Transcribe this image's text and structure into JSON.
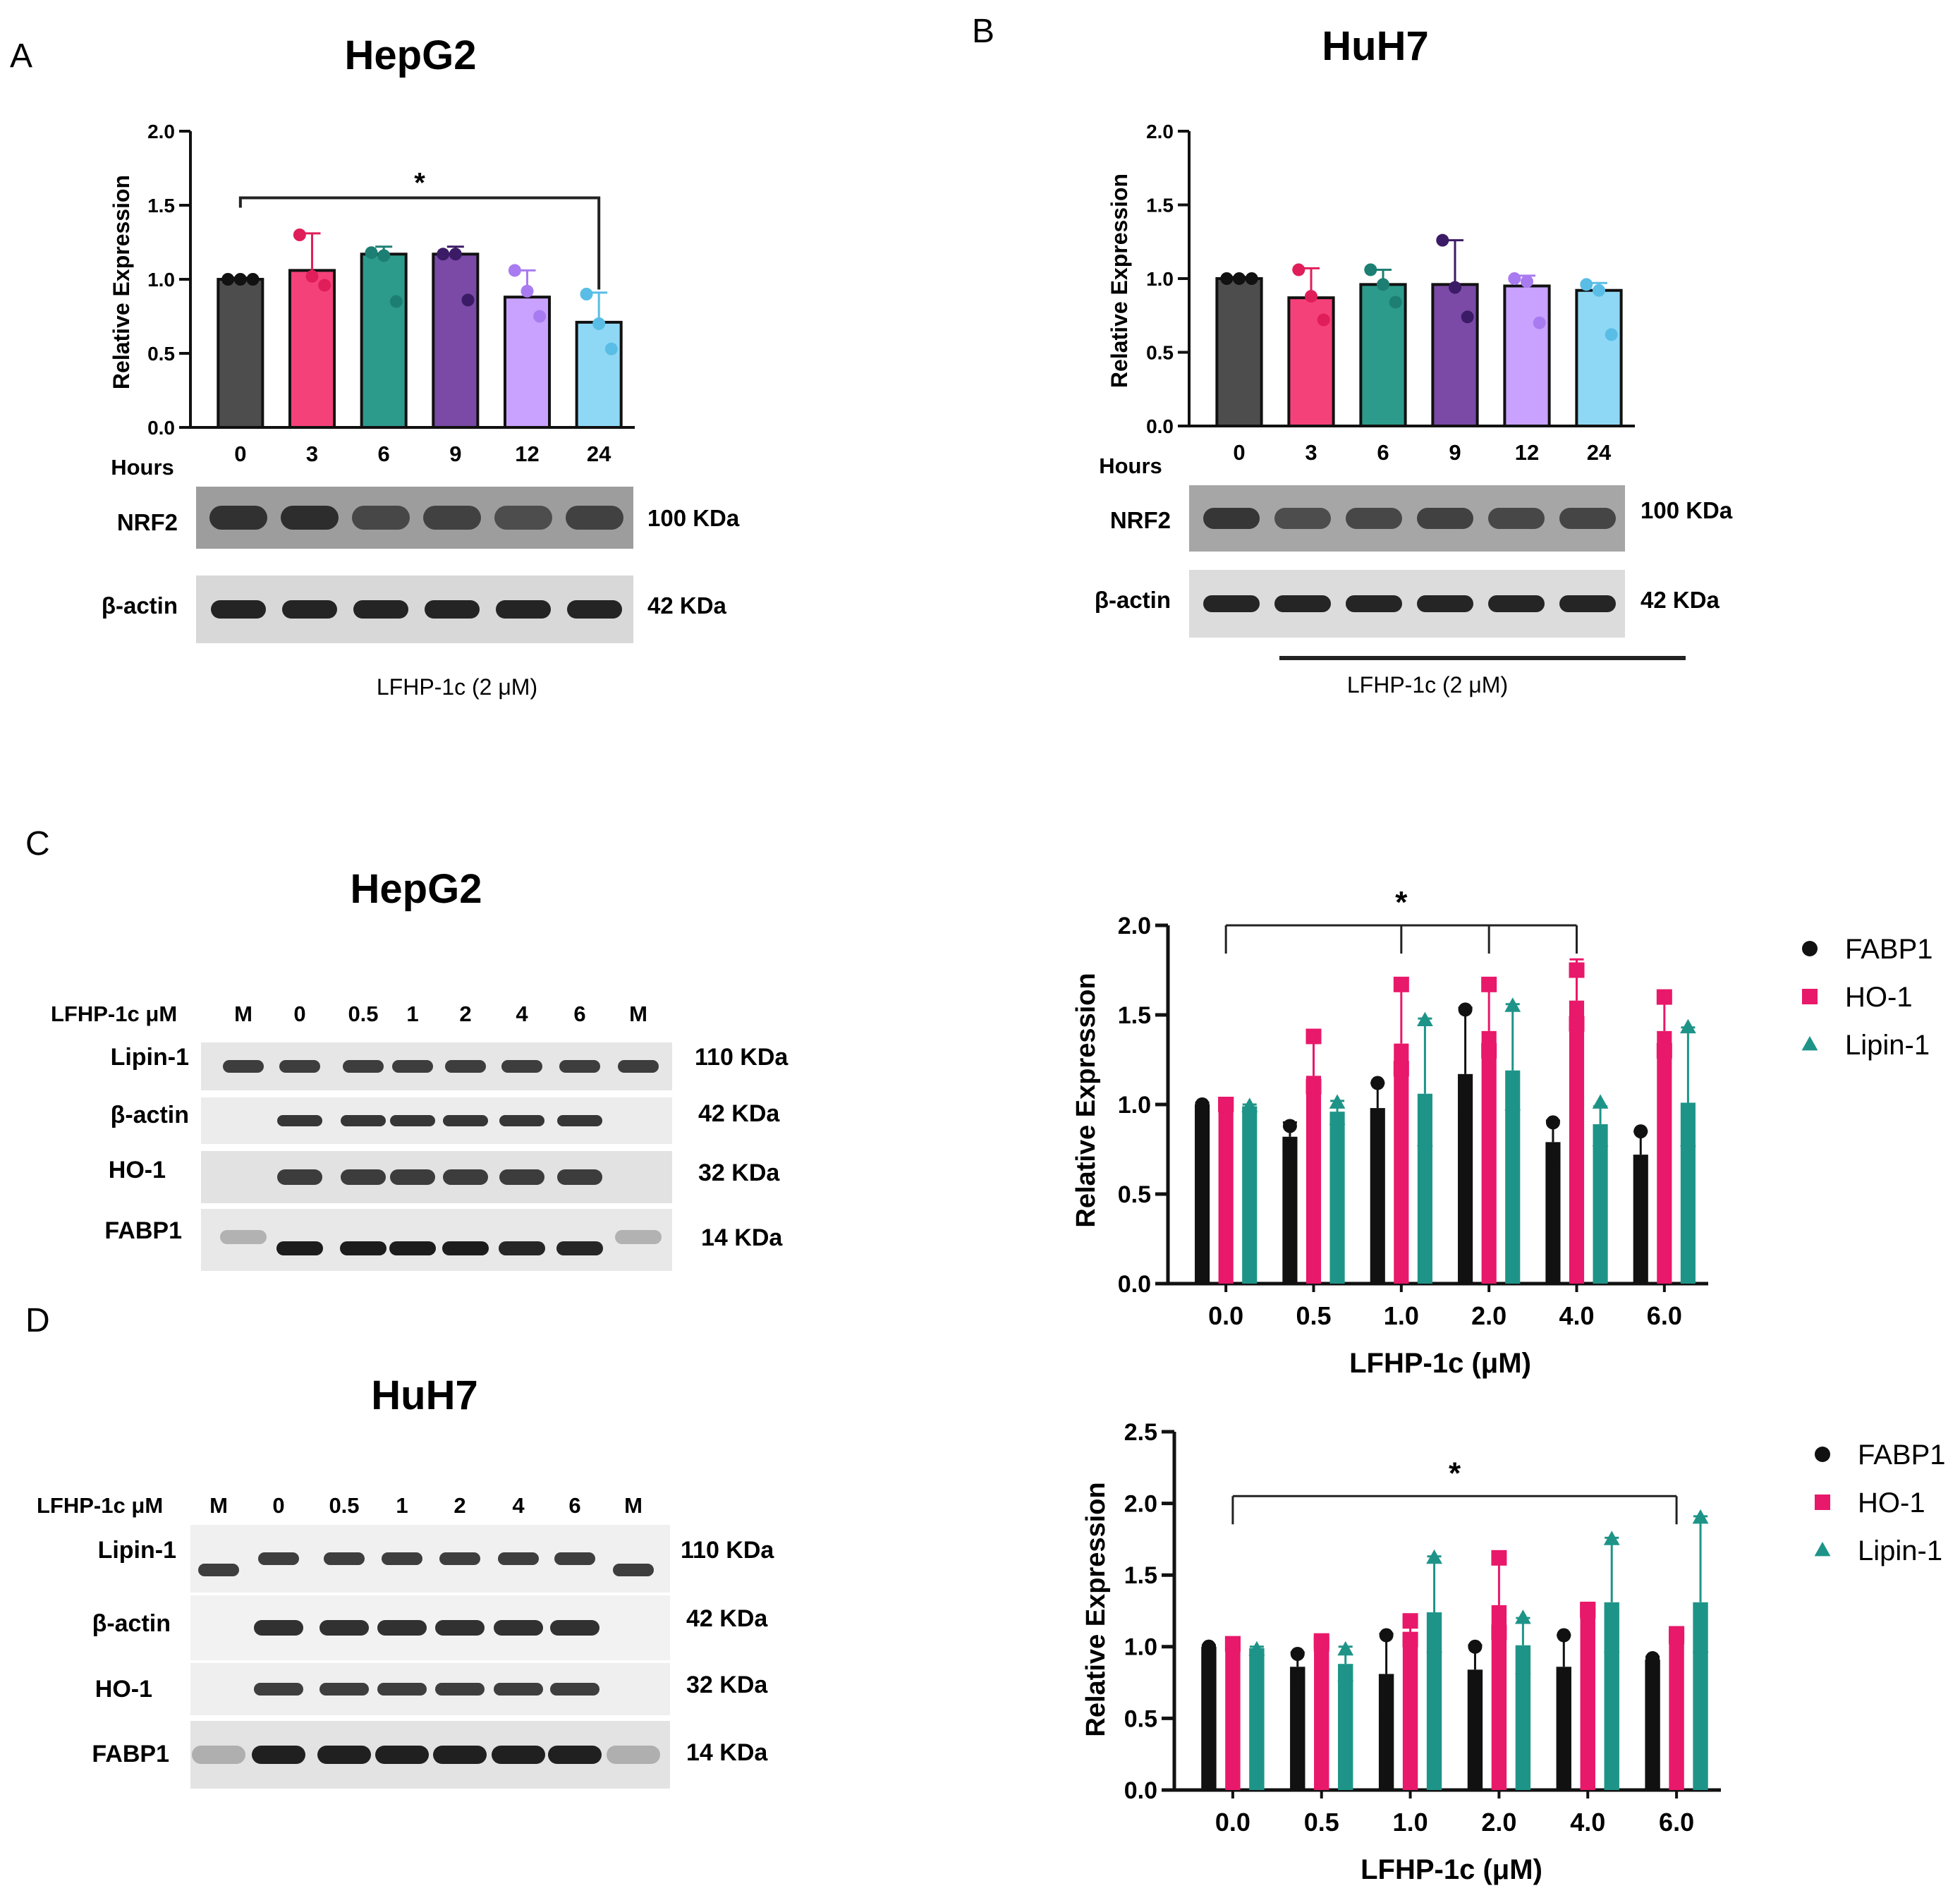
{
  "panel_letters": [
    "A",
    "B",
    "C",
    "D"
  ],
  "colors": {
    "time_bars": [
      "#4d4d4d",
      "#f5417a",
      "#2d9b8c",
      "#7a4aa6",
      "#c9a2ff",
      "#8fd8f5"
    ],
    "time_points": [
      "#111111",
      "#e01e5a",
      "#1d7f73",
      "#3c1b66",
      "#a97bf0",
      "#59bde6"
    ],
    "fabp1": "#111111",
    "ho1": "#e8186a",
    "lipin1": "#1e9488",
    "axis": "#111111"
  },
  "chart_data": [
    {
      "id": "A",
      "type": "bar",
      "title": "HepG2",
      "xlabel": "Hours",
      "ylabel": "Relative Expression",
      "categories": [
        "0",
        "3",
        "6",
        "9",
        "12",
        "24"
      ],
      "values": [
        1.0,
        1.06,
        1.17,
        1.17,
        0.88,
        0.71
      ],
      "errors": [
        0.01,
        0.25,
        0.05,
        0.05,
        0.18,
        0.2
      ],
      "points": [
        [
          1.0,
          1.0,
          1.0
        ],
        [
          1.3,
          1.02,
          0.96
        ],
        [
          1.18,
          1.16,
          0.85
        ],
        [
          1.17,
          1.17,
          0.86
        ],
        [
          1.06,
          0.92,
          0.75
        ],
        [
          0.9,
          0.7,
          0.53
        ]
      ],
      "ylim": [
        0,
        2.0
      ],
      "yticks": [
        "0.0",
        "0.5",
        "1.0",
        "1.5",
        "2.0"
      ],
      "significance": {
        "from": 0,
        "to": 5,
        "label": "*",
        "y": 1.55
      }
    },
    {
      "id": "B",
      "type": "bar",
      "title": "HuH7",
      "xlabel": "Hours",
      "ylabel": "Relative Expression",
      "categories": [
        "0",
        "3",
        "6",
        "9",
        "12",
        "24"
      ],
      "values": [
        1.0,
        0.87,
        0.96,
        0.96,
        0.95,
        0.92
      ],
      "errors": [
        0.01,
        0.2,
        0.1,
        0.3,
        0.07,
        0.05
      ],
      "points": [
        [
          1.0,
          1.0,
          1.0
        ],
        [
          1.06,
          0.88,
          0.72
        ],
        [
          1.06,
          0.96,
          0.84
        ],
        [
          1.26,
          0.94,
          0.74
        ],
        [
          1.0,
          0.98,
          0.7
        ],
        [
          0.96,
          0.92,
          0.62
        ]
      ],
      "ylim": [
        0,
        2.0
      ],
      "yticks": [
        "0.0",
        "0.5",
        "1.0",
        "1.5",
        "2.0"
      ]
    },
    {
      "id": "C",
      "type": "bar",
      "title": "HepG2",
      "xlabel": "LFHP-1c (μM)",
      "ylabel": "Relative Expression",
      "categories": [
        "0.0",
        "0.5",
        "1.0",
        "2.0",
        "4.0",
        "6.0"
      ],
      "series": [
        {
          "name": "FABP1",
          "values": [
            1.0,
            0.82,
            0.98,
            1.17,
            0.79,
            0.72
          ],
          "errors": [
            0.01,
            0.08,
            0.14,
            0.37,
            0.12,
            0.13
          ],
          "points": [
            [
              1.0,
              1.0
            ],
            [
              0.88,
              0.76
            ],
            [
              1.12,
              0.92
            ],
            [
              1.53,
              0.95
            ],
            [
              0.9,
              0.7
            ],
            [
              0.85,
              0.6
            ]
          ]
        },
        {
          "name": "HO-1",
          "values": [
            1.0,
            1.16,
            1.34,
            1.41,
            1.58,
            1.41
          ],
          "errors": [
            0.01,
            0.22,
            0.3,
            0.26,
            0.23,
            0.2
          ],
          "points": [
            [
              1.0,
              1.0
            ],
            [
              1.38,
              1.1
            ],
            [
              1.67,
              1.2
            ],
            [
              1.67,
              1.3
            ],
            [
              1.75,
              1.45
            ],
            [
              1.6,
              1.3
            ]
          ]
        },
        {
          "name": "Lipin-1",
          "values": [
            0.99,
            0.96,
            1.06,
            1.19,
            0.89,
            1.01
          ],
          "errors": [
            0.01,
            0.06,
            0.42,
            0.37,
            0.1,
            0.42
          ],
          "points": [
            [
              0.99,
              0.99
            ],
            [
              1.01,
              0.92
            ],
            [
              1.47,
              0.8
            ],
            [
              1.55,
              1.0
            ],
            [
              1.01,
              0.8
            ],
            [
              1.43,
              0.8
            ]
          ]
        }
      ],
      "ylim": [
        0,
        2.0
      ],
      "yticks": [
        "0.0",
        "0.5",
        "1.0",
        "1.5",
        "2.0"
      ],
      "significance": {
        "from": 0,
        "to": [
          2,
          3,
          4
        ],
        "label": "*",
        "y": 2.0
      },
      "legend": "right"
    },
    {
      "id": "D",
      "type": "bar",
      "title": "HuH7",
      "xlabel": "LFHP-1c (μM)",
      "ylabel": "Relative Expression",
      "categories": [
        "0.0",
        "0.5",
        "1.0",
        "2.0",
        "4.0",
        "6.0"
      ],
      "series": [
        {
          "name": "FABP1",
          "values": [
            1.0,
            0.86,
            0.81,
            0.84,
            0.86,
            0.91
          ],
          "errors": [
            0.01,
            0.1,
            0.28,
            0.17,
            0.22,
            0.02
          ],
          "points": [
            [
              1.0,
              1.0
            ],
            [
              0.95,
              0.8
            ],
            [
              1.08,
              0.55
            ],
            [
              1.0,
              0.72
            ],
            [
              1.08,
              0.65
            ],
            [
              0.92,
              0.9
            ]
          ]
        },
        {
          "name": "HO-1",
          "values": [
            1.02,
            1.03,
            1.07,
            1.29,
            1.25,
            1.08
          ],
          "errors": [
            0.01,
            0.02,
            0.12,
            0.34,
            0.02,
            0.02
          ],
          "points": [
            [
              1.02,
              1.02
            ],
            [
              1.04,
              1.02
            ],
            [
              1.18,
              1.05
            ],
            [
              1.62,
              1.1
            ],
            [
              1.26,
              1.25
            ],
            [
              1.09,
              1.07
            ]
          ]
        },
        {
          "name": "Lipin-1",
          "values": [
            0.99,
            0.88,
            1.24,
            1.01,
            1.31,
            1.31
          ],
          "errors": [
            0.01,
            0.12,
            0.39,
            0.19,
            0.45,
            0.6
          ],
          "points": [
            [
              0.98,
              0.98
            ],
            [
              0.98,
              0.8
            ],
            [
              1.62,
              1.0
            ],
            [
              1.2,
              0.85
            ],
            [
              1.75,
              1.0
            ],
            [
              1.9,
              1.0
            ]
          ]
        }
      ],
      "ylim": [
        0,
        2.5
      ],
      "yticks": [
        "0.0",
        "0.5",
        "1.0",
        "1.5",
        "2.0",
        "2.5"
      ],
      "significance": {
        "from": 0,
        "to": 5,
        "label": "*",
        "y": 2.1
      },
      "legend": "right"
    }
  ],
  "blots": {
    "A": {
      "hours_label": "Hours",
      "rows": [
        {
          "protein": "NRF2",
          "size": "100 KDa"
        },
        {
          "protein": "β-actin",
          "size": "42 KDa"
        }
      ],
      "treatment": "LFHP-1c (2 μM)"
    },
    "B": {
      "hours_label": "Hours",
      "rows": [
        {
          "protein": "NRF2",
          "size": "100 KDa"
        },
        {
          "protein": "β-actin",
          "size": "42 KDa"
        }
      ],
      "treatment": "LFHP-1c (2 μM)"
    },
    "C": {
      "title": "HepG2",
      "lane_header": "LFHP-1c μM",
      "lanes": [
        "M",
        "0",
        "0.5",
        "1",
        "2",
        "4",
        "6",
        "M"
      ],
      "rows": [
        {
          "protein": "Lipin-1",
          "size": "110 KDa"
        },
        {
          "protein": "β-actin",
          "size": "42 KDa"
        },
        {
          "protein": "HO-1",
          "size": "32 KDa"
        },
        {
          "protein": "FABP1",
          "size": "14 KDa"
        }
      ]
    },
    "D": {
      "title": "HuH7",
      "lane_header": "LFHP-1c μM",
      "lanes": [
        "M",
        "0",
        "0.5",
        "1",
        "2",
        "4",
        "6",
        "M"
      ],
      "rows": [
        {
          "protein": "Lipin-1",
          "size": "110 KDa"
        },
        {
          "protein": "β-actin",
          "size": "42 KDa"
        },
        {
          "protein": "HO-1",
          "size": "32 KDa"
        },
        {
          "protein": "FABP1",
          "size": "14 KDa"
        }
      ]
    }
  }
}
